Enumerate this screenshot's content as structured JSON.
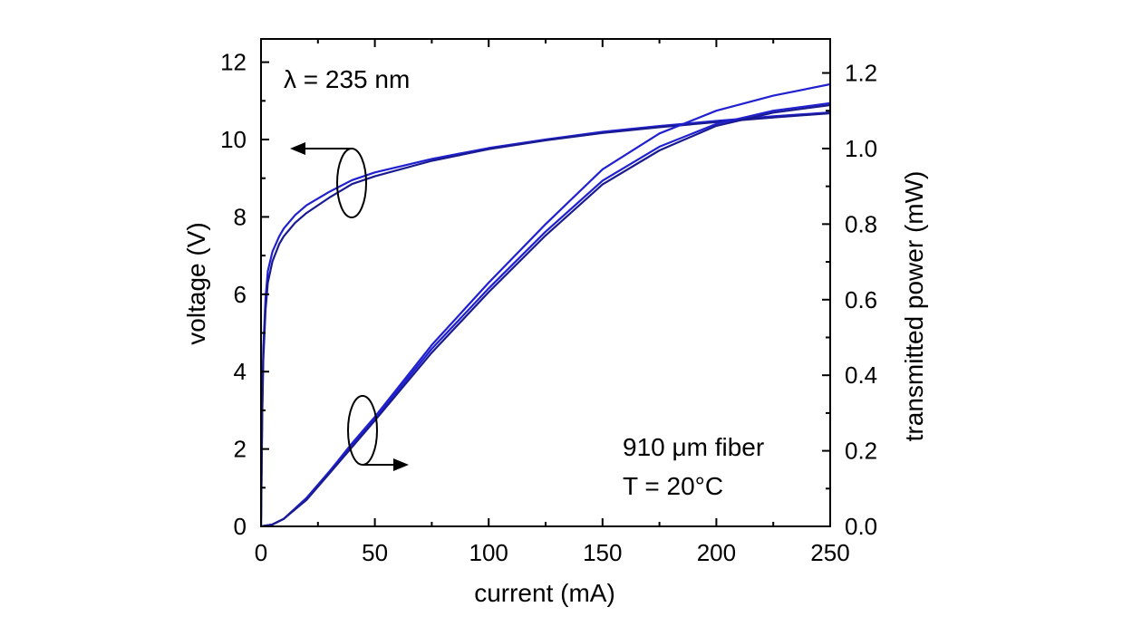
{
  "chart_data": {
    "type": "line",
    "xlabel": "current (mA)",
    "ylabel_left": "voltage (V)",
    "ylabel_right": "transmitted power (mW)",
    "xlim": [
      0,
      250
    ],
    "ylim_left": [
      0,
      12.6
    ],
    "ylim_right": [
      0,
      1.29
    ],
    "x_ticks": [
      0,
      50,
      100,
      150,
      200,
      250
    ],
    "y_left_ticks": [
      0,
      2,
      4,
      6,
      8,
      10,
      12
    ],
    "y_right_ticks": [
      "0.0",
      "0.2",
      "0.4",
      "0.6",
      "0.8",
      "1.0",
      "1.2"
    ],
    "line_color": "#2020d0",
    "line_color_dark": "#1a1a90",
    "annotations": {
      "wavelength": "λ = 235 nm",
      "fiber": "910 μm fiber",
      "temperature": "T = 20°C"
    },
    "series": [
      {
        "axis": "left",
        "x": [
          0,
          0.5,
          1,
          2,
          3,
          5,
          8,
          10,
          15,
          20,
          30,
          40,
          50,
          75,
          100,
          125,
          150,
          175,
          200,
          225,
          250
        ],
        "y": [
          0,
          3.0,
          4.6,
          5.9,
          6.6,
          7.1,
          7.5,
          7.7,
          8.05,
          8.3,
          8.65,
          8.95,
          9.15,
          9.5,
          9.78,
          10.0,
          10.2,
          10.35,
          10.48,
          10.6,
          10.7
        ]
      },
      {
        "axis": "left",
        "x": [
          0,
          0.5,
          1,
          2,
          3,
          5,
          8,
          10,
          15,
          20,
          30,
          40,
          50,
          75,
          100,
          125,
          150,
          175,
          200,
          225,
          250
        ],
        "y": [
          0,
          2.8,
          4.3,
          5.6,
          6.3,
          6.85,
          7.3,
          7.5,
          7.85,
          8.1,
          8.5,
          8.85,
          9.05,
          9.45,
          9.75,
          9.98,
          10.17,
          10.32,
          10.45,
          10.57,
          10.68
        ]
      },
      {
        "axis": "right",
        "x": [
          0,
          5,
          10,
          20,
          30,
          40,
          50,
          75,
          100,
          125,
          150,
          175,
          200,
          225,
          250
        ],
        "y": [
          0,
          0.005,
          0.02,
          0.075,
          0.145,
          0.215,
          0.285,
          0.47,
          0.63,
          0.78,
          0.915,
          1.005,
          1.065,
          1.1,
          1.12
        ]
      },
      {
        "axis": "right",
        "x": [
          0,
          5,
          10,
          20,
          30,
          40,
          50,
          75,
          100,
          125,
          150,
          175,
          200,
          225,
          250
        ],
        "y": [
          0,
          0.005,
          0.02,
          0.075,
          0.145,
          0.22,
          0.29,
          0.48,
          0.645,
          0.8,
          0.945,
          1.04,
          1.1,
          1.14,
          1.17
        ]
      },
      {
        "axis": "right",
        "x": [
          0,
          5,
          10,
          20,
          30,
          40,
          50,
          75,
          100,
          125,
          150,
          175,
          200,
          225,
          250
        ],
        "y": [
          0,
          0.005,
          0.02,
          0.07,
          0.14,
          0.21,
          0.28,
          0.46,
          0.62,
          0.77,
          0.905,
          0.995,
          1.06,
          1.095,
          1.115
        ]
      }
    ]
  }
}
